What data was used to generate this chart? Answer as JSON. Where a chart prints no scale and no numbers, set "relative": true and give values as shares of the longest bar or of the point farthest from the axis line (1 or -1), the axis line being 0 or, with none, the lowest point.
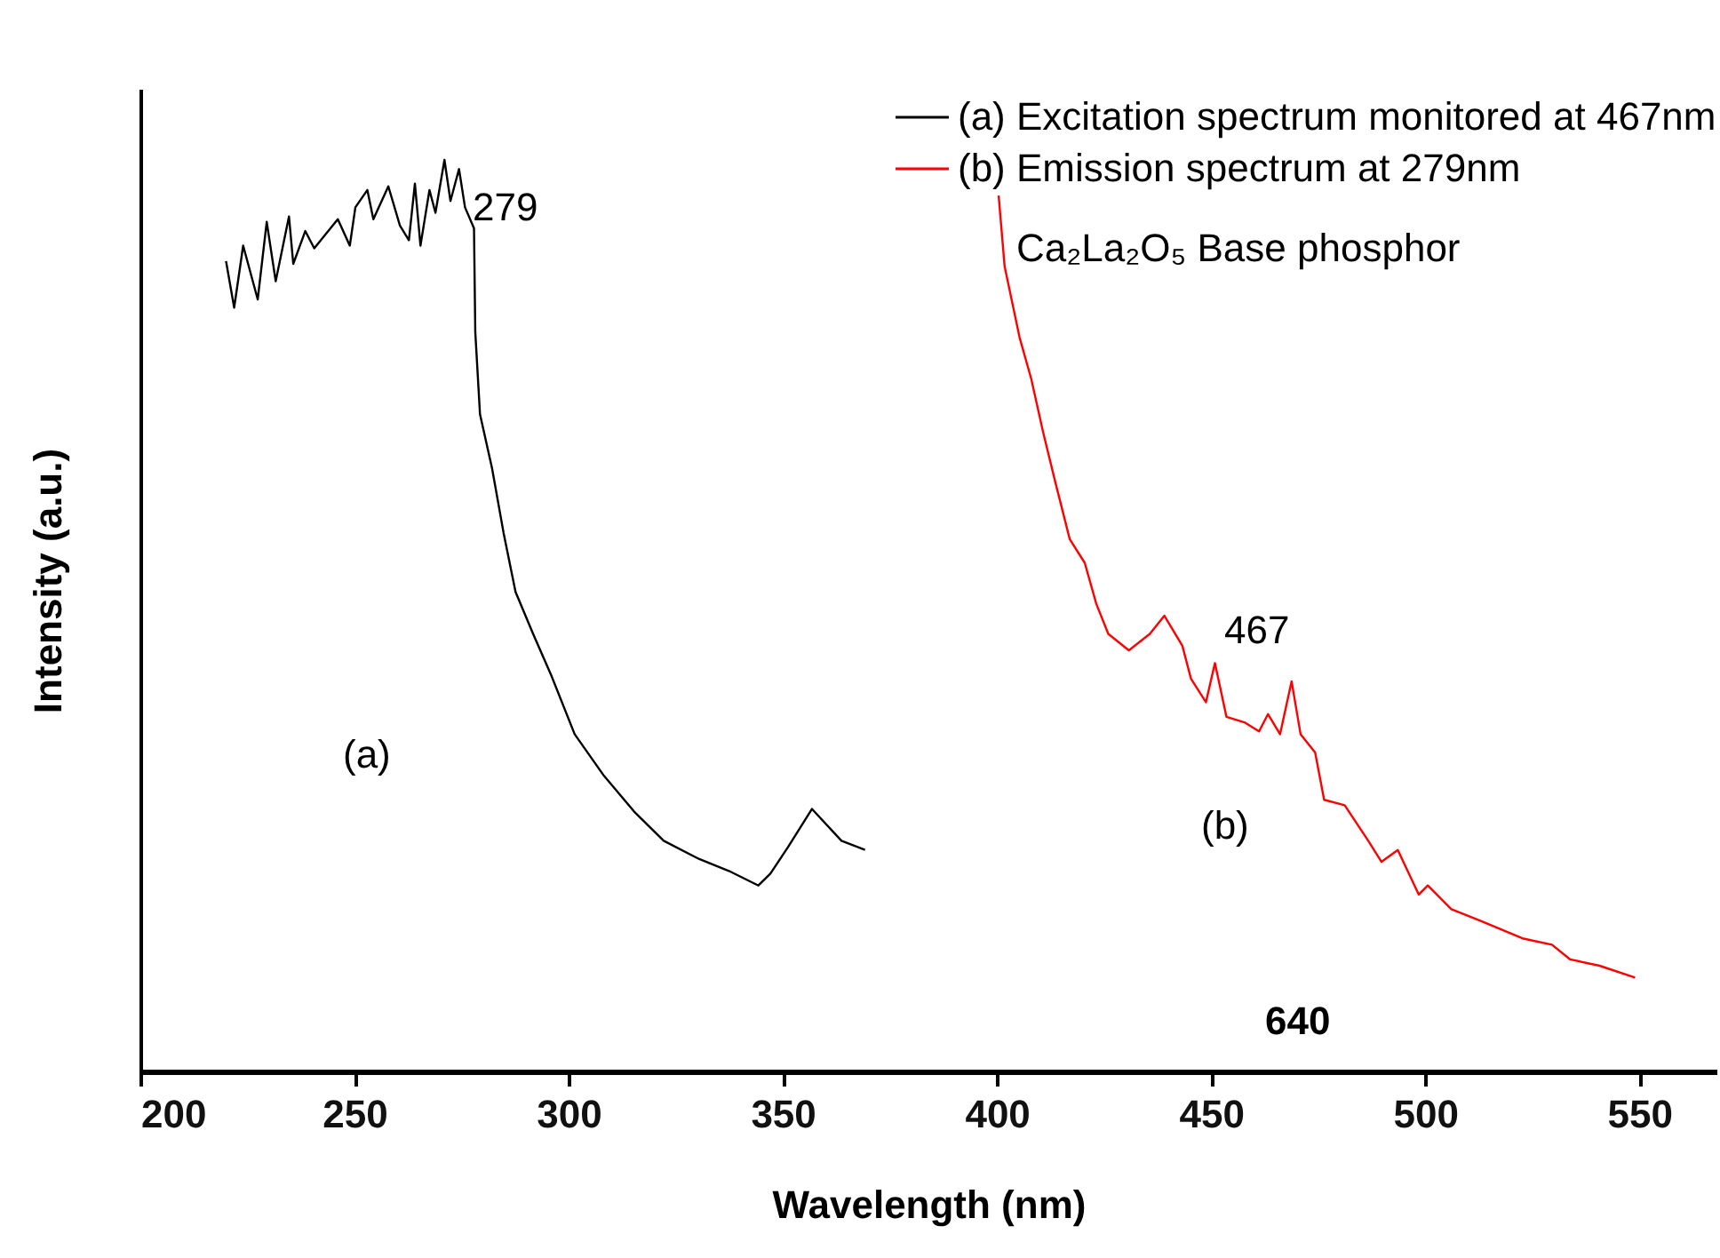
{
  "chart_data": {
    "type": "line",
    "relative": true,
    "xlabel": "Wavelength (nm)",
    "ylabel": "Intensity (a.u.)",
    "xlim": [
      200,
      568
    ],
    "xticks": [
      200,
      250,
      300,
      350,
      400,
      450,
      500,
      550
    ],
    "legend": "top right",
    "grid": false,
    "series": [
      {
        "name": "(a) Excitation spectrum monitored at 467nm",
        "color": "#000000",
        "x": [
          220,
          221.9,
          224,
          227.4,
          229.5,
          231.6,
          234.7,
          235.7,
          238.5,
          240.6,
          246.1,
          248.9,
          250.2,
          253,
          254.4,
          257.9,
          260.6,
          262.7,
          264.1,
          265.4,
          267.5,
          268.9,
          271,
          272.4,
          274.4,
          275.8,
          277.9,
          278.2,
          279.3,
          282.1,
          284.8,
          287.6,
          291.7,
          295.9,
          301.4,
          308.3,
          315.3,
          322.2,
          330.5,
          337.4,
          344.3,
          347.1,
          351.2,
          356.8,
          363.7,
          369.2
        ],
        "values": [
          0.889,
          0.838,
          0.906,
          0.847,
          0.932,
          0.867,
          0.938,
          0.886,
          0.922,
          0.903,
          0.935,
          0.906,
          0.948,
          0.967,
          0.935,
          0.971,
          0.928,
          0.912,
          0.974,
          0.906,
          0.967,
          0.942,
          1.0,
          0.955,
          0.99,
          0.948,
          0.925,
          0.811,
          0.721,
          0.662,
          0.591,
          0.526,
          0.48,
          0.435,
          0.37,
          0.324,
          0.285,
          0.253,
          0.233,
          0.22,
          0.204,
          0.217,
          0.246,
          0.288,
          0.253,
          0.243
        ]
      },
      {
        "name": "(b) Emission spectrum at 279nm",
        "color": "#ff0000",
        "x": [
          400.4,
          401.8,
          405.3,
          408,
          410.8,
          413.5,
          417,
          420.5,
          423.2,
          426,
          430.8,
          435.7,
          439.1,
          443.3,
          445.3,
          448.8,
          450.9,
          453.6,
          457.8,
          461.2,
          463.3,
          466.1,
          468.8,
          470.9,
          474.3,
          476.4,
          481.2,
          486.7,
          489.8,
          493.6,
          498.5,
          500.6,
          506.1,
          513,
          522.7,
          529.6,
          533.8,
          540.7,
          549
        ],
        "values": [
          0.961,
          0.883,
          0.805,
          0.76,
          0.701,
          0.649,
          0.584,
          0.558,
          0.513,
          0.48,
          0.462,
          0.48,
          0.5,
          0.467,
          0.431,
          0.405,
          0.448,
          0.389,
          0.383,
          0.373,
          0.392,
          0.37,
          0.428,
          0.37,
          0.35,
          0.298,
          0.292,
          0.253,
          0.23,
          0.243,
          0.194,
          0.204,
          0.178,
          0.165,
          0.146,
          0.139,
          0.123,
          0.116,
          0.103
        ]
      }
    ],
    "annotations": [
      "279",
      "467",
      "(a)",
      "(b)",
      "Ca₂La₂O₅ Base phosphor",
      "640"
    ]
  }
}
